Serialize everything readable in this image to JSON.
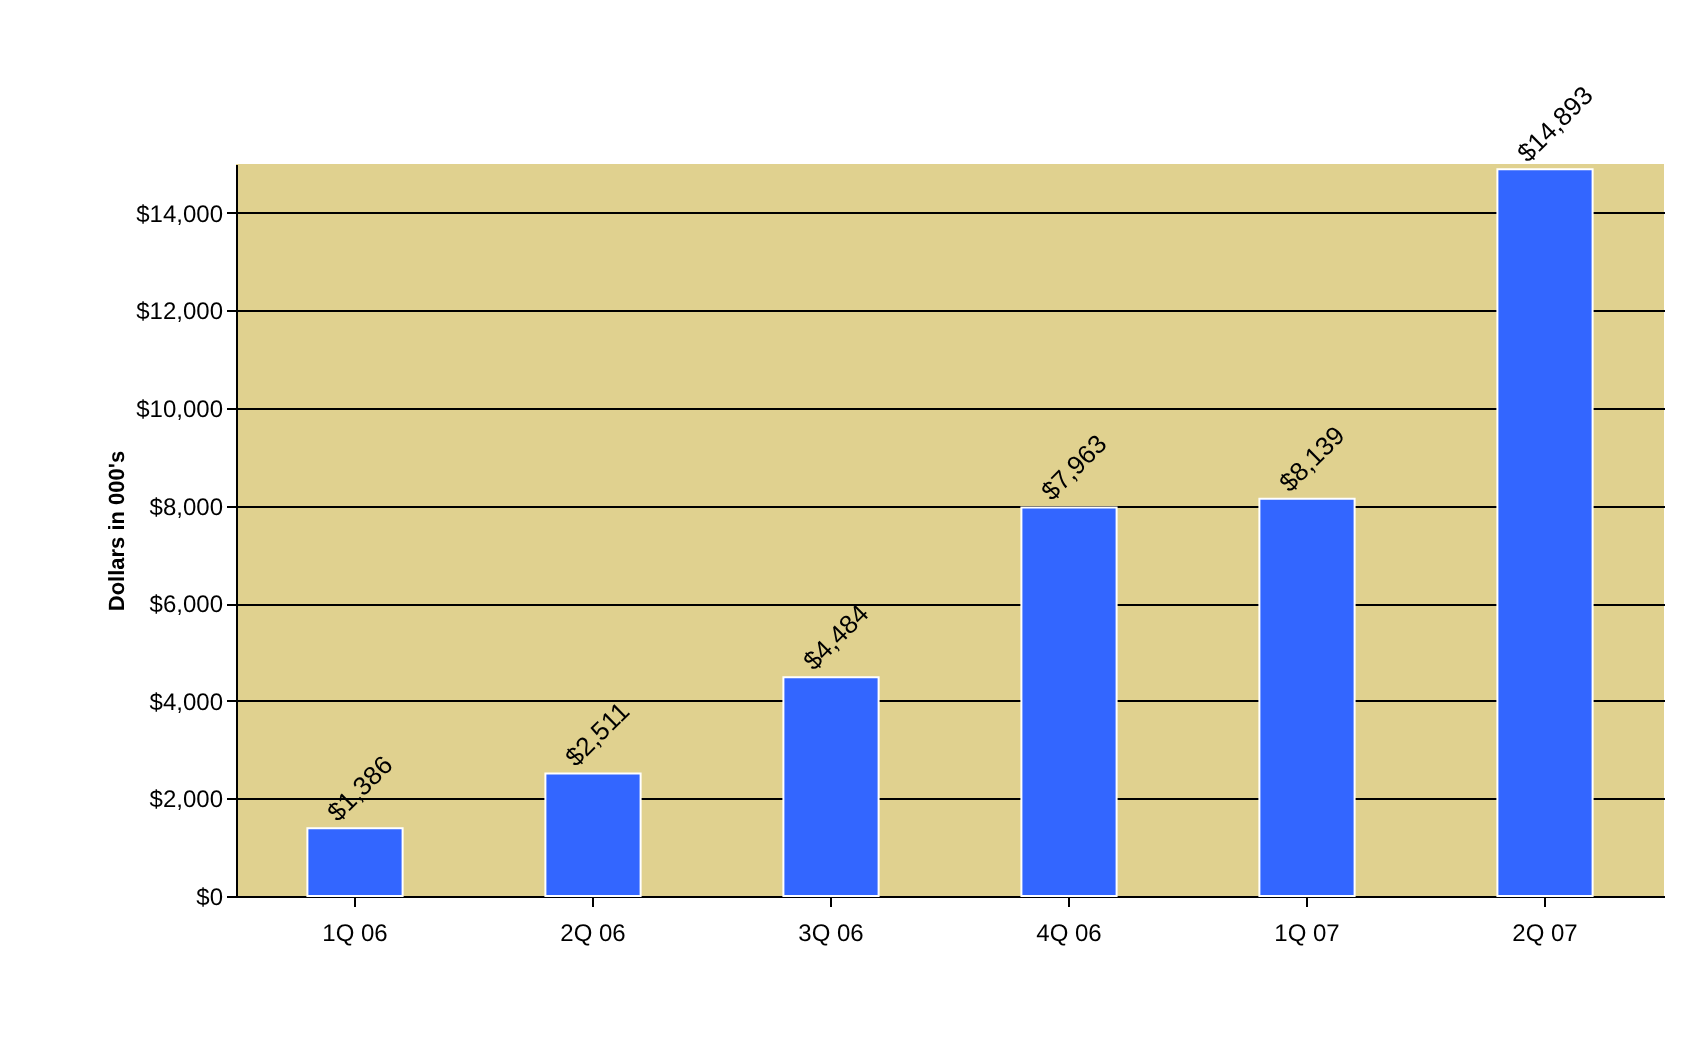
{
  "chart_data": {
    "type": "bar",
    "ylabel": "Dollars in 000's",
    "categories": [
      "1Q 06",
      "2Q 06",
      "3Q 06",
      "4Q 06",
      "1Q 07",
      "2Q 07"
    ],
    "values": [
      1386,
      2511,
      4484,
      7963,
      8139,
      14893
    ],
    "value_labels": [
      "$1,386",
      "$2,511",
      "$4,484",
      "$7,963",
      "$8,139",
      "$14,893"
    ],
    "color": "#3366ff",
    "ylim": [
      0,
      15000
    ],
    "yticks": [
      {
        "value": 0,
        "label": "$0"
      },
      {
        "value": 2000,
        "label": "$2,000"
      },
      {
        "value": 4000,
        "label": "$4,000"
      },
      {
        "value": 6000,
        "label": "$6,000"
      },
      {
        "value": 8000,
        "label": "$8,000"
      },
      {
        "value": 10000,
        "label": "$10,000"
      },
      {
        "value": 12000,
        "label": "$12,000"
      },
      {
        "value": 14000,
        "label": "$14,000"
      }
    ],
    "grid": "y"
  }
}
